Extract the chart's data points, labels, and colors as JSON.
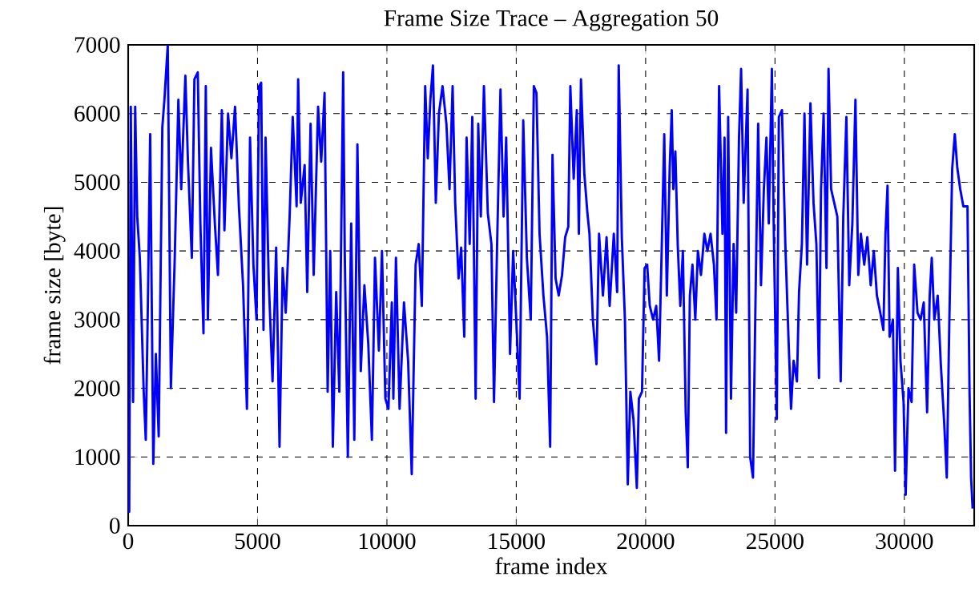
{
  "chart_data": {
    "type": "line",
    "title": "Frame Size Trace – Aggregation 50",
    "xlabel": "frame index",
    "ylabel": "frame size [byte]",
    "xlim": [
      0,
      32700
    ],
    "ylim": [
      0,
      7000
    ],
    "xticks": [
      0,
      5000,
      10000,
      15000,
      20000,
      25000,
      30000
    ],
    "yticks": [
      0,
      1000,
      2000,
      3000,
      4000,
      5000,
      6000,
      7000
    ],
    "grid": true,
    "marker": "none",
    "line_style": "solid",
    "series": [
      {
        "color": "#0000ff",
        "x": [
          0,
          40,
          100,
          190,
          270,
          350,
          450,
          600,
          680,
          760,
          850,
          970,
          1070,
          1180,
          1320,
          1400,
          1530,
          1650,
          1800,
          1940,
          2050,
          2210,
          2310,
          2460,
          2560,
          2690,
          2790,
          2910,
          3000,
          3080,
          3200,
          3350,
          3470,
          3620,
          3720,
          3860,
          3990,
          4130,
          4280,
          4440,
          4590,
          4710,
          4840,
          4960,
          5060,
          5140,
          5230,
          5310,
          5430,
          5580,
          5720,
          5850,
          5970,
          6090,
          6240,
          6360,
          6510,
          6570,
          6670,
          6820,
          6920,
          7050,
          7170,
          7340,
          7460,
          7590,
          7710,
          7810,
          7910,
          8040,
          8160,
          8310,
          8370,
          8490,
          8620,
          8740,
          8860,
          8990,
          9130,
          9280,
          9420,
          9540,
          9690,
          9810,
          9940,
          10060,
          10190,
          10250,
          10350,
          10490,
          10660,
          10820,
          10960,
          11110,
          11230,
          11350,
          11480,
          11580,
          11680,
          11780,
          11890,
          12010,
          12150,
          12300,
          12420,
          12540,
          12640,
          12770,
          12870,
          12990,
          13080,
          13200,
          13300,
          13430,
          13530,
          13630,
          13750,
          13900,
          14040,
          14140,
          14260,
          14390,
          14510,
          14610,
          14760,
          14880,
          15000,
          15130,
          15270,
          15410,
          15560,
          15680,
          15780,
          15900,
          16050,
          16190,
          16310,
          16400,
          16520,
          16640,
          16770,
          16890,
          17010,
          17090,
          17220,
          17340,
          17420,
          17500,
          17630,
          17750,
          17830,
          17960,
          18100,
          18200,
          18350,
          18490,
          18610,
          18770,
          18900,
          18960,
          19080,
          19200,
          19310,
          19410,
          19530,
          19660,
          19740,
          19860,
          19960,
          20060,
          20160,
          20290,
          20410,
          20520,
          20620,
          20720,
          20820,
          20930,
          21010,
          21070,
          21150,
          21240,
          21340,
          21440,
          21550,
          21630,
          21710,
          21810,
          21920,
          22020,
          22140,
          22270,
          22390,
          22510,
          22640,
          22740,
          22840,
          22970,
          23050,
          23110,
          23190,
          23300,
          23400,
          23500,
          23610,
          23690,
          23790,
          23940,
          24040,
          24150,
          24250,
          24350,
          24460,
          24570,
          24670,
          24760,
          24880,
          24940,
          25070,
          25150,
          25270,
          25400,
          25520,
          25620,
          25720,
          25850,
          25930,
          26040,
          26140,
          26240,
          26370,
          26490,
          26600,
          26700,
          26780,
          26880,
          26990,
          27070,
          27170,
          27290,
          27410,
          27540,
          27640,
          27760,
          27870,
          27990,
          28110,
          28220,
          28320,
          28450,
          28570,
          28700,
          28820,
          28940,
          29070,
          29190,
          29270,
          29350,
          29430,
          29560,
          29640,
          29750,
          29850,
          29970,
          30050,
          30160,
          30280,
          30380,
          30510,
          30630,
          30750,
          30880,
          30980,
          31060,
          31160,
          31290,
          31410,
          31540,
          31640,
          31740,
          31850,
          31950,
          32050,
          32160,
          32280,
          32440,
          32520,
          32580,
          32640
        ],
        "values": [
          1400,
          200,
          6100,
          1800,
          6100,
          4500,
          3900,
          1950,
          1250,
          3200,
          5700,
          900,
          2500,
          1300,
          5800,
          6200,
          7000,
          2000,
          3900,
          6200,
          4900,
          6550,
          5300,
          3900,
          6500,
          6600,
          4400,
          2800,
          6400,
          3000,
          5500,
          4400,
          3650,
          6050,
          4300,
          6000,
          5350,
          6100,
          4650,
          3500,
          1700,
          5650,
          3800,
          3000,
          6400,
          6450,
          2850,
          5650,
          3600,
          2100,
          4050,
          1150,
          3750,
          3100,
          4500,
          5950,
          4650,
          6500,
          4700,
          5250,
          3400,
          5850,
          3650,
          6100,
          5300,
          6300,
          1950,
          4000,
          1150,
          3400,
          1950,
          6600,
          4000,
          1000,
          4400,
          1250,
          5550,
          2250,
          3500,
          2650,
          1250,
          3900,
          2550,
          4000,
          1850,
          1700,
          3250,
          1850,
          3900,
          1700,
          3250,
          2400,
          750,
          3800,
          4100,
          3200,
          6400,
          5350,
          6200,
          6700,
          4700,
          6000,
          6400,
          5850,
          4900,
          6400,
          4700,
          3600,
          4050,
          2750,
          5650,
          4100,
          5950,
          1850,
          5850,
          4500,
          6400,
          4550,
          4100,
          1800,
          4100,
          6350,
          4500,
          5650,
          2500,
          4000,
          3000,
          1850,
          5900,
          3900,
          3000,
          6400,
          6300,
          4250,
          3350,
          2750,
          1150,
          5400,
          3600,
          3350,
          3650,
          4200,
          4350,
          6400,
          5050,
          6050,
          4250,
          6500,
          5130,
          4550,
          4250,
          3000,
          2350,
          4250,
          3350,
          4200,
          3200,
          4250,
          3400,
          6700,
          4200,
          3000,
          600,
          1950,
          1550,
          550,
          1850,
          1950,
          3750,
          3800,
          3200,
          3000,
          3200,
          2400,
          4000,
          5700,
          3350,
          5200,
          6050,
          4900,
          5450,
          4100,
          3200,
          4000,
          1650,
          850,
          3350,
          3800,
          3000,
          4000,
          3650,
          4250,
          4000,
          4250,
          3800,
          3000,
          6400,
          4250,
          5650,
          1350,
          5950,
          1850,
          4100,
          3100,
          5650,
          6650,
          4700,
          6350,
          1000,
          700,
          3350,
          5850,
          3500,
          4900,
          5650,
          4400,
          6650,
          4650,
          1550,
          5950,
          6050,
          4100,
          2750,
          1700,
          2400,
          2100,
          3400,
          4100,
          6000,
          3800,
          6150,
          4700,
          4100,
          2150,
          4900,
          6000,
          3750,
          6650,
          4900,
          4700,
          4500,
          2100,
          4500,
          5950,
          3500,
          4400,
          6200,
          3650,
          4250,
          3800,
          4200,
          3500,
          4000,
          3350,
          3100,
          2850,
          4250,
          4950,
          2750,
          3000,
          800,
          3750,
          2400,
          1800,
          450,
          2000,
          1800,
          3800,
          3100,
          3000,
          3250,
          1650,
          3350,
          3900,
          3000,
          3350,
          2350,
          1500,
          700,
          3000,
          5200,
          5700,
          5200,
          4900,
          4650,
          4650,
          1950,
          700,
          250
        ]
      }
    ]
  }
}
